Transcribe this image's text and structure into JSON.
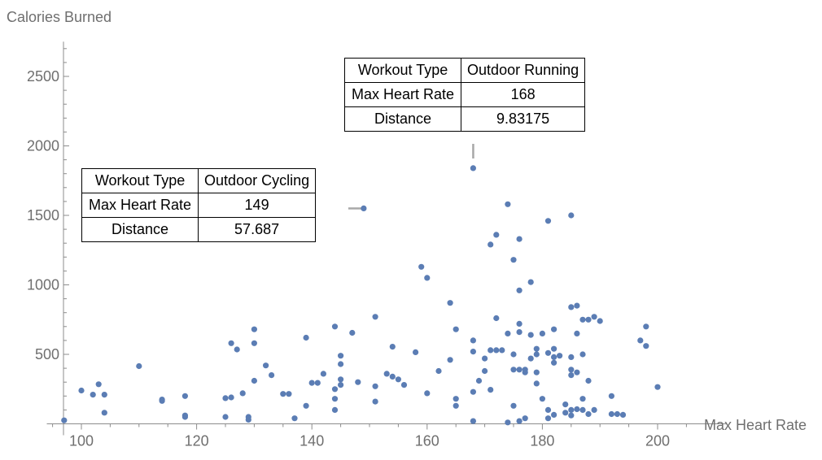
{
  "chart_data": {
    "type": "scatter",
    "xlabel": "Max Heart Rate",
    "ylabel": "Calories Burned",
    "xlim": [
      94,
      207
    ],
    "ylim": [
      0,
      2750
    ],
    "xticks": [
      100,
      120,
      140,
      160,
      180,
      200
    ],
    "yticks": [
      500,
      1000,
      1500,
      2000,
      2500
    ],
    "point_color": "#5b7db4",
    "series": [
      {
        "points": [
          [
            97,
            25
          ],
          [
            100,
            240
          ],
          [
            102,
            210
          ],
          [
            103,
            285
          ],
          [
            104,
            80
          ],
          [
            104,
            210
          ],
          [
            110,
            415
          ],
          [
            114,
            165
          ],
          [
            114,
            175
          ],
          [
            118,
            200
          ],
          [
            118,
            60
          ],
          [
            118,
            50
          ],
          [
            125,
            185
          ],
          [
            125,
            50
          ],
          [
            126,
            580
          ],
          [
            126,
            190
          ],
          [
            127,
            535
          ],
          [
            128,
            220
          ],
          [
            129,
            50
          ],
          [
            129,
            30
          ],
          [
            130,
            680
          ],
          [
            130,
            580
          ],
          [
            130,
            310
          ],
          [
            132,
            420
          ],
          [
            133,
            350
          ],
          [
            135,
            215
          ],
          [
            136,
            215
          ],
          [
            137,
            40
          ],
          [
            139,
            620
          ],
          [
            139,
            130
          ],
          [
            140,
            295
          ],
          [
            141,
            295
          ],
          [
            142,
            360
          ],
          [
            144,
            700
          ],
          [
            144,
            250
          ],
          [
            144,
            180
          ],
          [
            144,
            100
          ],
          [
            145,
            490
          ],
          [
            145,
            430
          ],
          [
            145,
            320
          ],
          [
            145,
            280
          ],
          [
            147,
            655
          ],
          [
            148,
            300
          ],
          [
            149,
            1550
          ],
          [
            151,
            770
          ],
          [
            151,
            270
          ],
          [
            151,
            160
          ],
          [
            153,
            360
          ],
          [
            154,
            555
          ],
          [
            154,
            340
          ],
          [
            155,
            320
          ],
          [
            156,
            280
          ],
          [
            158,
            515
          ],
          [
            159,
            1130
          ],
          [
            160,
            1050
          ],
          [
            160,
            220
          ],
          [
            162,
            380
          ],
          [
            164,
            870
          ],
          [
            164,
            460
          ],
          [
            165,
            680
          ],
          [
            165,
            180
          ],
          [
            165,
            130
          ],
          [
            168,
            1840
          ],
          [
            168,
            600
          ],
          [
            168,
            520
          ],
          [
            168,
            230
          ],
          [
            168,
            20
          ],
          [
            169,
            310
          ],
          [
            170,
            470
          ],
          [
            170,
            380
          ],
          [
            171,
            1290
          ],
          [
            171,
            530
          ],
          [
            171,
            245
          ],
          [
            172,
            1360
          ],
          [
            172,
            760
          ],
          [
            172,
            530
          ],
          [
            173,
            530
          ],
          [
            174,
            1580
          ],
          [
            174,
            650
          ],
          [
            174,
            10
          ],
          [
            175,
            1180
          ],
          [
            175,
            500
          ],
          [
            175,
            390
          ],
          [
            175,
            130
          ],
          [
            176,
            1330
          ],
          [
            176,
            960
          ],
          [
            176,
            720
          ],
          [
            176,
            660
          ],
          [
            176,
            390
          ],
          [
            176,
            20
          ],
          [
            177,
            390
          ],
          [
            177,
            370
          ],
          [
            177,
            40
          ],
          [
            178,
            1020
          ],
          [
            178,
            640
          ],
          [
            178,
            470
          ],
          [
            179,
            540
          ],
          [
            179,
            500
          ],
          [
            179,
            370
          ],
          [
            179,
            290
          ],
          [
            180,
            650
          ],
          [
            180,
            180
          ],
          [
            181,
            1460
          ],
          [
            181,
            510
          ],
          [
            181,
            100
          ],
          [
            181,
            40
          ],
          [
            182,
            680
          ],
          [
            182,
            540
          ],
          [
            182,
            480
          ],
          [
            182,
            440
          ],
          [
            182,
            65
          ],
          [
            183,
            490
          ],
          [
            184,
            140
          ],
          [
            184,
            80
          ],
          [
            185,
            1500
          ],
          [
            185,
            840
          ],
          [
            185,
            480
          ],
          [
            185,
            390
          ],
          [
            185,
            350
          ],
          [
            185,
            60
          ],
          [
            185,
            100
          ],
          [
            186,
            850
          ],
          [
            186,
            650
          ],
          [
            186,
            370
          ],
          [
            186,
            105
          ],
          [
            187,
            750
          ],
          [
            187,
            500
          ],
          [
            187,
            180
          ],
          [
            187,
            100
          ],
          [
            188,
            750
          ],
          [
            188,
            310
          ],
          [
            188,
            70
          ],
          [
            189,
            770
          ],
          [
            189,
            100
          ],
          [
            190,
            740
          ],
          [
            192,
            200
          ],
          [
            192,
            70
          ],
          [
            193,
            70
          ],
          [
            194,
            65
          ],
          [
            197,
            600
          ],
          [
            198,
            700
          ],
          [
            198,
            560
          ],
          [
            200,
            265
          ]
        ]
      }
    ]
  },
  "tooltips": [
    {
      "rows": [
        {
          "key": "Workout Type",
          "value": "Outdoor Cycling"
        },
        {
          "key": "Max Heart Rate",
          "value": "149"
        },
        {
          "key": "Distance",
          "value": "57.687"
        }
      ]
    },
    {
      "rows": [
        {
          "key": "Workout Type",
          "value": "Outdoor Running"
        },
        {
          "key": "Max Heart Rate",
          "value": "168"
        },
        {
          "key": "Distance",
          "value": "9.83175"
        }
      ]
    }
  ]
}
